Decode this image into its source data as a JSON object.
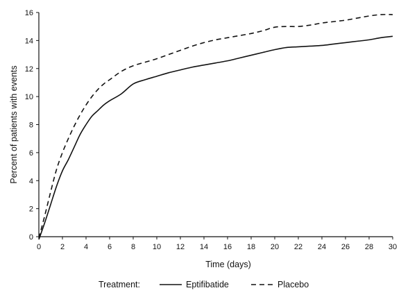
{
  "chart_data": {
    "type": "line",
    "title": "",
    "xlabel": "Time (days)",
    "ylabel": "Percent of patients with events",
    "xlim": [
      0,
      30
    ],
    "ylim": [
      0,
      16
    ],
    "x_ticks": [
      0,
      2,
      4,
      6,
      8,
      10,
      12,
      14,
      16,
      18,
      20,
      22,
      24,
      26,
      28,
      30
    ],
    "y_ticks": [
      0,
      2,
      4,
      6,
      8,
      10,
      12,
      14,
      16
    ],
    "grid": false,
    "legend": {
      "placement": "bottom",
      "title": "Treatment:"
    },
    "series": [
      {
        "name": "Eptifibatide",
        "style": "solid",
        "color": "#111111",
        "x": [
          0,
          0.5,
          1,
          1.5,
          2,
          2.5,
          3,
          3.5,
          4,
          4.5,
          5,
          5.5,
          6,
          7,
          8,
          9,
          10,
          11,
          12,
          13,
          14,
          15,
          16,
          17,
          18,
          19,
          20,
          21,
          22,
          23,
          24,
          25,
          26,
          27,
          28,
          29,
          30
        ],
        "values": [
          -0.2,
          1.0,
          2.3,
          3.6,
          4.7,
          5.5,
          6.4,
          7.3,
          8.0,
          8.6,
          9.0,
          9.4,
          9.7,
          10.2,
          10.9,
          11.2,
          11.45,
          11.7,
          11.9,
          12.1,
          12.25,
          12.4,
          12.55,
          12.75,
          12.95,
          13.15,
          13.35,
          13.5,
          13.55,
          13.6,
          13.65,
          13.75,
          13.85,
          13.95,
          14.05,
          14.2,
          14.3
        ]
      },
      {
        "name": "Placebo",
        "style": "dashed",
        "color": "#111111",
        "x": [
          0,
          0.5,
          1,
          1.5,
          2,
          2.5,
          3,
          3.5,
          4,
          4.5,
          5,
          5.5,
          6,
          7,
          8,
          9,
          10,
          11,
          12,
          13,
          14,
          15,
          16,
          17,
          18,
          19,
          20,
          21,
          22,
          23,
          24,
          25,
          26,
          27,
          28,
          29,
          30
        ],
        "values": [
          -0.1,
          1.5,
          3.2,
          4.8,
          6.0,
          7.0,
          7.9,
          8.7,
          9.4,
          10.0,
          10.5,
          10.9,
          11.2,
          11.8,
          12.2,
          12.45,
          12.7,
          13.0,
          13.3,
          13.6,
          13.85,
          14.05,
          14.2,
          14.35,
          14.5,
          14.7,
          14.95,
          15.0,
          15.0,
          15.1,
          15.25,
          15.35,
          15.45,
          15.6,
          15.75,
          15.85,
          15.85
        ]
      }
    ]
  }
}
